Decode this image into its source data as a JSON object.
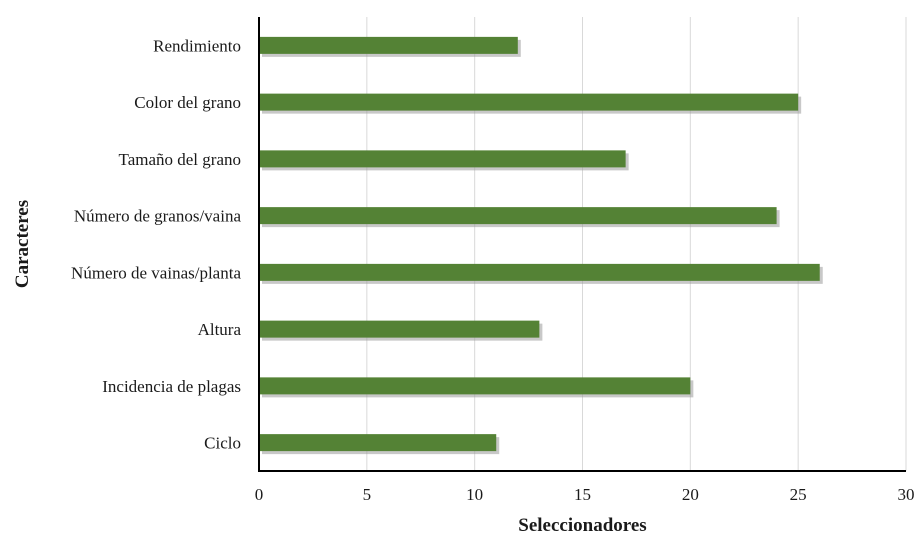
{
  "chart_data": {
    "type": "bar",
    "orientation": "horizontal",
    "categories": [
      "Rendimiento",
      "Color del grano",
      "Tamaño del grano",
      "Número de granos/vaina",
      "Número de vainas/planta",
      "Altura",
      "Incidencia de plagas",
      "Ciclo"
    ],
    "values": [
      12,
      25,
      17,
      24,
      26,
      13,
      20,
      11
    ],
    "xlabel": "Seleccionadores",
    "ylabel": "Caracteres",
    "xlim": [
      0,
      30
    ],
    "xticks": [
      "0",
      "5",
      "10",
      "15",
      "20",
      "25",
      "30"
    ],
    "grid": "vertical",
    "colors": {
      "bar": "#548235"
    }
  }
}
